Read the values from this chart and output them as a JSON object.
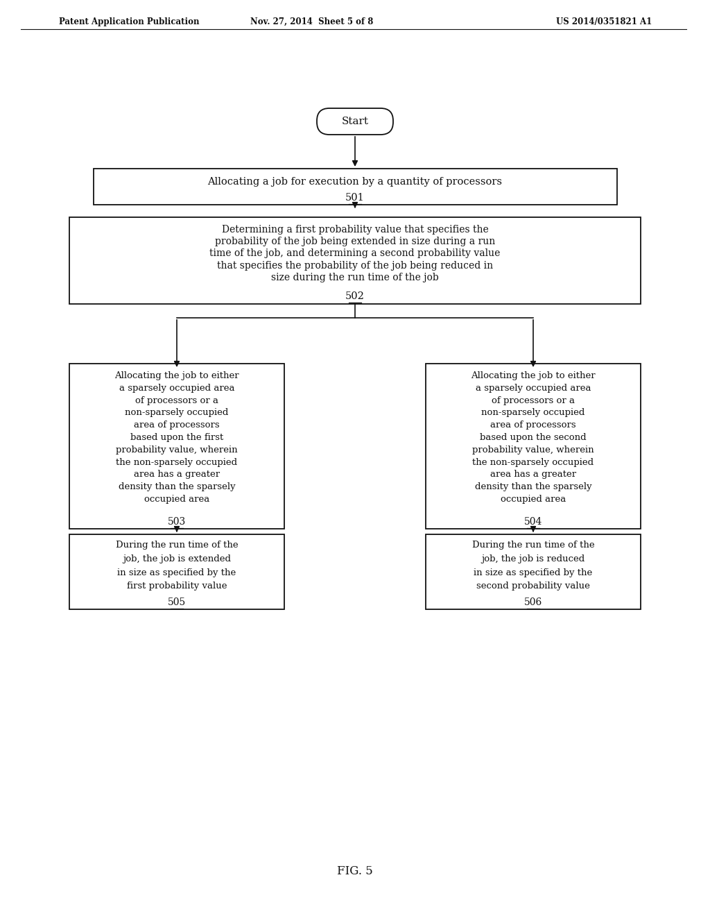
{
  "bg_color": "#ffffff",
  "header_left": "Patent Application Publication",
  "header_center": "Nov. 27, 2014  Sheet 5 of 8",
  "header_right": "US 2014/0351821 A1",
  "footer_label": "FIG. 5",
  "start_label": "Start",
  "lines501": [
    "Allocating a job for execution by a quantity of processors",
    "501"
  ],
  "lines502": [
    "Determining a first probability value that specifies the",
    "probability of the job being extended in size during a run",
    "time of the job, and determining a second probability value",
    "that specifies the probability of the job being reduced in",
    "size during the run time of the job",
    "502"
  ],
  "lines503": [
    "Allocating the job to either",
    "a sparsely occupied area",
    "of processors or a",
    "non-sparsely occupied",
    "area of processors",
    "based upon the first",
    "probability value, wherein",
    "the non-sparsely occupied",
    "area has a greater",
    "density than the sparsely",
    "occupied area",
    "503"
  ],
  "lines504": [
    "Allocating the job to either",
    "a sparsely occupied area",
    "of processors or a",
    "non-sparsely occupied",
    "area of processors",
    "based upon the second",
    "probability value, wherein",
    "the non-sparsely occupied",
    "area has a greater",
    "density than the sparsely",
    "occupied area",
    "504"
  ],
  "lines505": [
    "During the run time of the",
    "job, the job is extended",
    "in size as specified by the",
    "first probability value",
    "505"
  ],
  "lines506": [
    "During the run time of the",
    "job, the job is reduced",
    "in size as specified by the",
    "second probability value",
    "506"
  ],
  "text_color": "#111111",
  "box_edge_color": "#111111",
  "font_family": "DejaVu Serif"
}
